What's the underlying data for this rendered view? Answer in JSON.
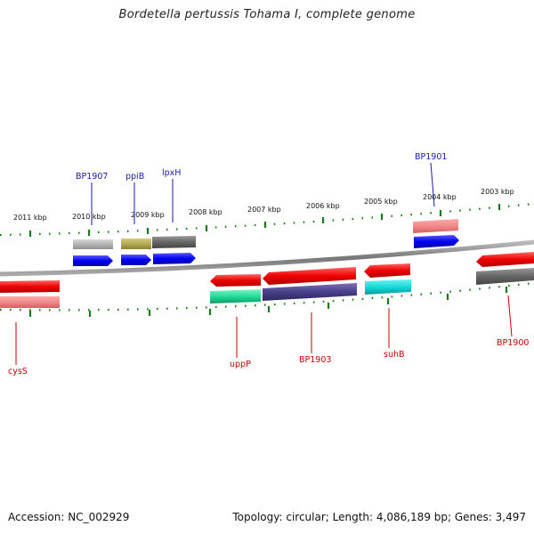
{
  "title": "Bordetella pertussis Tohama I, complete genome",
  "footer": {
    "accession": "Accession: NC_002929",
    "topology": "Topology: circular; Length: 4,086,189 bp; Genes: 3,497"
  },
  "kbp_labels": [
    "2011 kbp",
    "2010 kbp",
    "2009 kbp",
    "2008 kbp",
    "2007 kbp",
    "2006 kbp",
    "2005 kbp",
    "2004 kbp",
    "2003 kbp"
  ],
  "genes_top": [
    {
      "label": "BP1907",
      "color": "#1a1aa6"
    },
    {
      "label": "ppiB",
      "color": "#1a1aa6"
    },
    {
      "label": "lpxH",
      "color": "#1a1aa6"
    },
    {
      "label": "BP1901",
      "color": "#1a1aa6"
    }
  ],
  "genes_bottom": [
    {
      "label": "cysS",
      "color": "#cc0000"
    },
    {
      "label": "uppP",
      "color": "#cc0000"
    },
    {
      "label": "BP1903",
      "color": "#cc0000"
    },
    {
      "label": "suhB",
      "color": "#cc0000"
    },
    {
      "label": "BP1900",
      "color": "#cc0000"
    }
  ],
  "colors": {
    "backbone": "#888888",
    "ticks": "#1a7a1a",
    "forward_cds": "#0000ee",
    "reverse_cds": "#ee0000",
    "teal_feature": "#18d8d8",
    "green_feature": "#22dd99",
    "navy_feature": "#4a3f8a",
    "olive_feature": "#b5a955"
  }
}
